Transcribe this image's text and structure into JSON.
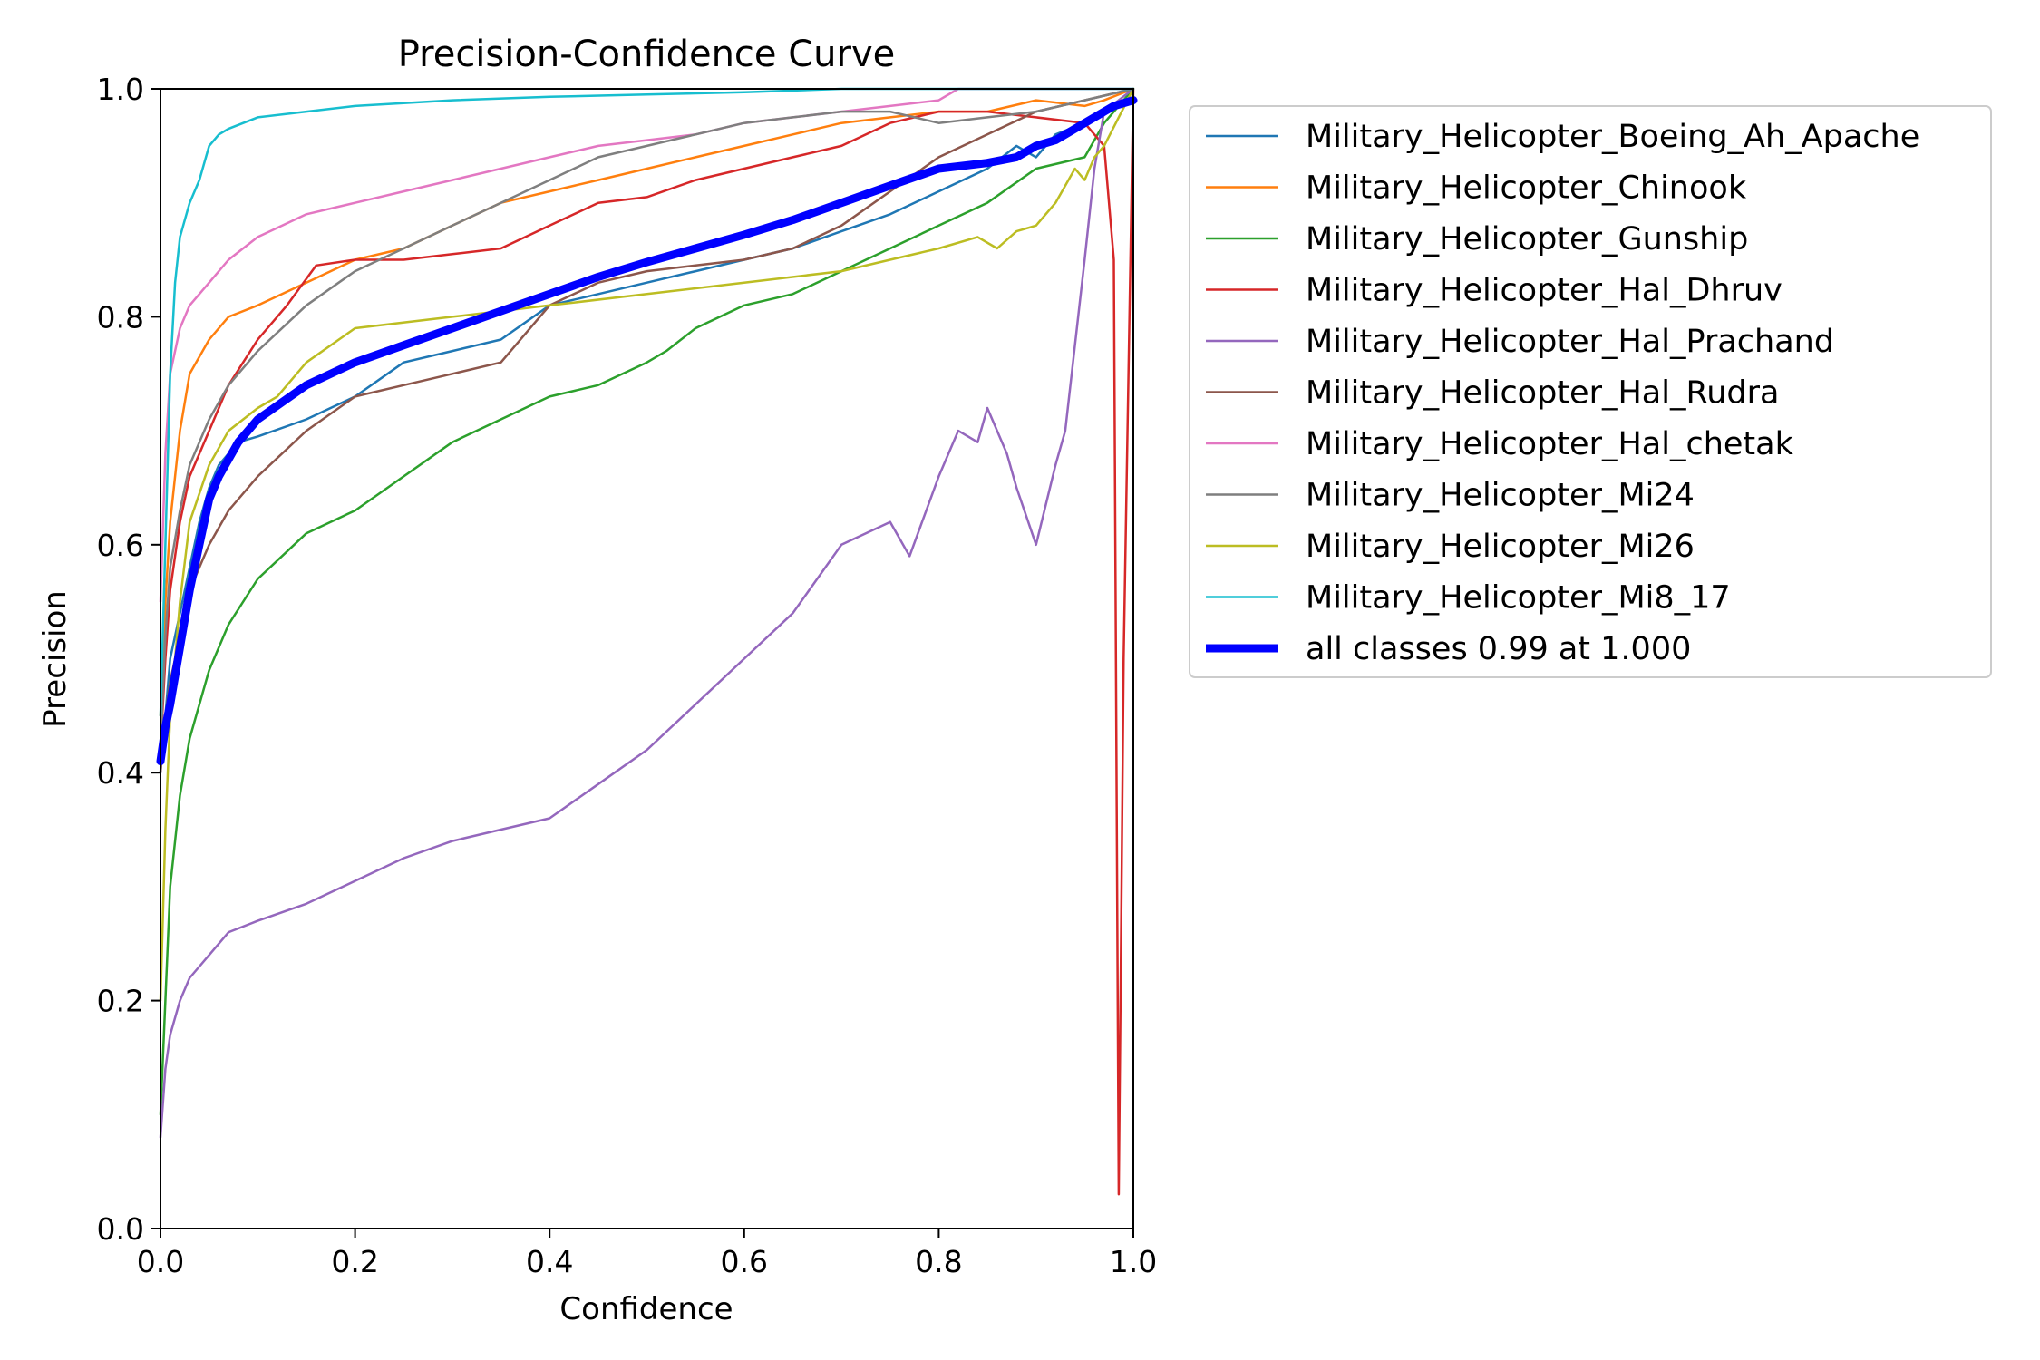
{
  "chart_data": {
    "type": "line",
    "title": "Precision-Confidence Curve",
    "xlabel": "Confidence",
    "ylabel": "Precision",
    "xlim": [
      0,
      1
    ],
    "ylim": [
      0,
      1
    ],
    "xticks": [
      "0.0",
      "0.2",
      "0.4",
      "0.6",
      "0.8",
      "1.0"
    ],
    "yticks": [
      "0.0",
      "0.2",
      "0.4",
      "0.6",
      "0.8",
      "1.0"
    ],
    "grid": false,
    "legend_position": "outside-right",
    "series": [
      {
        "name": "Military_Helicopter_Boeing_Ah_Apache",
        "color": "#1f77b4",
        "x": [
          0.0,
          0.005,
          0.01,
          0.02,
          0.03,
          0.04,
          0.05,
          0.06,
          0.08,
          0.1,
          0.15,
          0.2,
          0.25,
          0.3,
          0.35,
          0.4,
          0.45,
          0.5,
          0.55,
          0.6,
          0.65,
          0.7,
          0.75,
          0.8,
          0.85,
          0.88,
          0.9,
          0.92,
          0.95,
          0.97,
          1.0
        ],
        "y": [
          0.4,
          0.45,
          0.5,
          0.54,
          0.58,
          0.62,
          0.65,
          0.67,
          0.69,
          0.695,
          0.71,
          0.73,
          0.76,
          0.77,
          0.78,
          0.81,
          0.82,
          0.83,
          0.84,
          0.85,
          0.86,
          0.875,
          0.89,
          0.91,
          0.93,
          0.95,
          0.94,
          0.96,
          0.97,
          0.98,
          0.99
        ]
      },
      {
        "name": "Military_Helicopter_Chinook",
        "color": "#ff7f0e",
        "x": [
          0.0,
          0.005,
          0.01,
          0.02,
          0.03,
          0.05,
          0.07,
          0.1,
          0.15,
          0.2,
          0.25,
          0.3,
          0.35,
          0.4,
          0.45,
          0.5,
          0.55,
          0.6,
          0.65,
          0.7,
          0.75,
          0.8,
          0.85,
          0.9,
          0.95,
          0.97,
          1.0
        ],
        "y": [
          0.45,
          0.55,
          0.62,
          0.7,
          0.75,
          0.78,
          0.8,
          0.81,
          0.83,
          0.85,
          0.86,
          0.88,
          0.9,
          0.91,
          0.92,
          0.93,
          0.94,
          0.95,
          0.96,
          0.97,
          0.975,
          0.98,
          0.98,
          0.99,
          0.985,
          0.99,
          1.0
        ]
      },
      {
        "name": "Military_Helicopter_Gunship",
        "color": "#2ca02c",
        "x": [
          0.0,
          0.005,
          0.01,
          0.02,
          0.03,
          0.05,
          0.07,
          0.1,
          0.15,
          0.2,
          0.25,
          0.3,
          0.35,
          0.4,
          0.45,
          0.5,
          0.52,
          0.55,
          0.6,
          0.65,
          0.7,
          0.75,
          0.8,
          0.85,
          0.9,
          0.95,
          0.97,
          1.0
        ],
        "y": [
          0.1,
          0.2,
          0.3,
          0.38,
          0.43,
          0.49,
          0.53,
          0.57,
          0.61,
          0.63,
          0.66,
          0.69,
          0.71,
          0.73,
          0.74,
          0.76,
          0.77,
          0.79,
          0.81,
          0.82,
          0.84,
          0.86,
          0.88,
          0.9,
          0.93,
          0.94,
          0.97,
          1.0
        ]
      },
      {
        "name": "Military_Helicopter_Hal_Dhruv",
        "color": "#d62728",
        "x": [
          0.0,
          0.005,
          0.01,
          0.02,
          0.03,
          0.05,
          0.07,
          0.1,
          0.13,
          0.16,
          0.2,
          0.25,
          0.3,
          0.35,
          0.4,
          0.45,
          0.5,
          0.55,
          0.6,
          0.65,
          0.7,
          0.75,
          0.8,
          0.85,
          0.9,
          0.95,
          0.97,
          0.98,
          0.985,
          0.99,
          1.0
        ],
        "y": [
          0.42,
          0.5,
          0.56,
          0.62,
          0.66,
          0.7,
          0.74,
          0.78,
          0.81,
          0.845,
          0.85,
          0.85,
          0.855,
          0.86,
          0.88,
          0.9,
          0.905,
          0.92,
          0.93,
          0.94,
          0.95,
          0.97,
          0.98,
          0.98,
          0.975,
          0.97,
          0.95,
          0.85,
          0.03,
          0.5,
          1.0
        ]
      },
      {
        "name": "Military_Helicopter_Hal_Prachand",
        "color": "#9467bd",
        "x": [
          0.0,
          0.005,
          0.01,
          0.02,
          0.03,
          0.05,
          0.07,
          0.1,
          0.15,
          0.2,
          0.25,
          0.3,
          0.35,
          0.4,
          0.45,
          0.5,
          0.55,
          0.6,
          0.65,
          0.7,
          0.75,
          0.77,
          0.8,
          0.82,
          0.84,
          0.85,
          0.87,
          0.88,
          0.9,
          0.92,
          0.93,
          0.95,
          0.96,
          0.97,
          1.0
        ],
        "y": [
          0.08,
          0.14,
          0.17,
          0.2,
          0.22,
          0.24,
          0.26,
          0.27,
          0.285,
          0.305,
          0.325,
          0.34,
          0.35,
          0.36,
          0.39,
          0.42,
          0.46,
          0.5,
          0.54,
          0.6,
          0.62,
          0.59,
          0.66,
          0.7,
          0.69,
          0.72,
          0.68,
          0.65,
          0.6,
          0.67,
          0.7,
          0.85,
          0.93,
          0.98,
          1.0
        ]
      },
      {
        "name": "Military_Helicopter_Hal_Rudra",
        "color": "#8c564b",
        "x": [
          0.0,
          0.005,
          0.01,
          0.02,
          0.03,
          0.04,
          0.05,
          0.07,
          0.1,
          0.15,
          0.2,
          0.25,
          0.3,
          0.35,
          0.4,
          0.45,
          0.5,
          0.55,
          0.6,
          0.65,
          0.7,
          0.75,
          0.8,
          0.85,
          0.9,
          0.95,
          1.0
        ],
        "y": [
          0.4,
          0.45,
          0.48,
          0.52,
          0.56,
          0.58,
          0.6,
          0.63,
          0.66,
          0.7,
          0.73,
          0.74,
          0.75,
          0.76,
          0.81,
          0.83,
          0.84,
          0.845,
          0.85,
          0.86,
          0.88,
          0.91,
          0.94,
          0.96,
          0.98,
          0.99,
          1.0
        ]
      },
      {
        "name": "Military_Helicopter_Hal_chetak",
        "color": "#e377c2",
        "x": [
          0.0,
          0.005,
          0.01,
          0.02,
          0.03,
          0.05,
          0.07,
          0.1,
          0.15,
          0.2,
          0.25,
          0.3,
          0.35,
          0.4,
          0.45,
          0.5,
          0.55,
          0.6,
          0.65,
          0.7,
          0.75,
          0.8,
          0.82,
          0.85,
          1.0
        ],
        "y": [
          0.55,
          0.68,
          0.75,
          0.79,
          0.81,
          0.83,
          0.85,
          0.87,
          0.89,
          0.9,
          0.91,
          0.92,
          0.93,
          0.94,
          0.95,
          0.955,
          0.96,
          0.97,
          0.975,
          0.98,
          0.985,
          0.99,
          1.0,
          1.0,
          1.0
        ]
      },
      {
        "name": "Military_Helicopter_Mi24",
        "color": "#7f7f7f",
        "x": [
          0.0,
          0.005,
          0.01,
          0.02,
          0.03,
          0.04,
          0.05,
          0.07,
          0.1,
          0.15,
          0.2,
          0.25,
          0.3,
          0.35,
          0.4,
          0.45,
          0.5,
          0.55,
          0.6,
          0.65,
          0.7,
          0.75,
          0.8,
          0.85,
          0.9,
          0.95,
          1.0
        ],
        "y": [
          0.42,
          0.52,
          0.58,
          0.63,
          0.67,
          0.69,
          0.71,
          0.74,
          0.77,
          0.81,
          0.84,
          0.86,
          0.88,
          0.9,
          0.92,
          0.94,
          0.95,
          0.96,
          0.97,
          0.975,
          0.98,
          0.98,
          0.97,
          0.975,
          0.98,
          0.99,
          1.0
        ]
      },
      {
        "name": "Military_Helicopter_Mi26",
        "color": "#bcbd22",
        "x": [
          0.0,
          0.005,
          0.01,
          0.02,
          0.03,
          0.05,
          0.07,
          0.1,
          0.12,
          0.15,
          0.2,
          0.3,
          0.4,
          0.5,
          0.6,
          0.7,
          0.75,
          0.8,
          0.84,
          0.86,
          0.88,
          0.9,
          0.92,
          0.94,
          0.95,
          0.96,
          0.97,
          1.0
        ],
        "y": [
          0.2,
          0.35,
          0.45,
          0.55,
          0.62,
          0.67,
          0.7,
          0.72,
          0.73,
          0.76,
          0.79,
          0.8,
          0.81,
          0.82,
          0.83,
          0.84,
          0.85,
          0.86,
          0.87,
          0.86,
          0.875,
          0.88,
          0.9,
          0.93,
          0.92,
          0.94,
          0.95,
          1.0
        ]
      },
      {
        "name": "Military_Helicopter_Mi8_17",
        "color": "#17becf",
        "x": [
          0.0,
          0.005,
          0.01,
          0.015,
          0.02,
          0.03,
          0.04,
          0.05,
          0.06,
          0.07,
          0.1,
          0.15,
          0.2,
          0.3,
          0.4,
          0.5,
          0.6,
          0.7,
          0.8,
          0.9,
          1.0
        ],
        "y": [
          0.45,
          0.6,
          0.75,
          0.83,
          0.87,
          0.9,
          0.92,
          0.95,
          0.96,
          0.965,
          0.975,
          0.98,
          0.985,
          0.99,
          0.993,
          0.995,
          0.997,
          1.0,
          1.0,
          1.0,
          1.0
        ]
      },
      {
        "name": "all classes 0.99 at 1.000",
        "color": "#0000ff",
        "bold": true,
        "x": [
          0.0,
          0.005,
          0.01,
          0.02,
          0.03,
          0.04,
          0.05,
          0.06,
          0.08,
          0.1,
          0.15,
          0.2,
          0.25,
          0.3,
          0.35,
          0.4,
          0.45,
          0.5,
          0.55,
          0.6,
          0.65,
          0.7,
          0.75,
          0.8,
          0.85,
          0.88,
          0.9,
          0.92,
          0.95,
          0.98,
          1.0
        ],
        "y": [
          0.41,
          0.44,
          0.46,
          0.51,
          0.56,
          0.6,
          0.64,
          0.66,
          0.69,
          0.71,
          0.74,
          0.76,
          0.775,
          0.79,
          0.805,
          0.82,
          0.835,
          0.848,
          0.86,
          0.872,
          0.885,
          0.9,
          0.915,
          0.93,
          0.935,
          0.94,
          0.95,
          0.955,
          0.97,
          0.985,
          0.99
        ]
      }
    ]
  }
}
